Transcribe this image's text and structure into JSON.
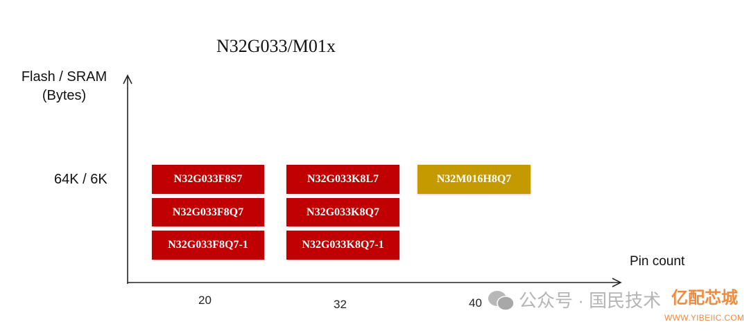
{
  "title": "N32G033/M01x",
  "y_axis": {
    "label_line1": "Flash / SRAM",
    "label_line2": "(Bytes)",
    "tick": "64K / 6K"
  },
  "x_axis": {
    "label": "Pin count",
    "ticks": [
      "20",
      "32",
      "40"
    ]
  },
  "columns": [
    {
      "pins": "20",
      "parts": [
        "N32G033F8S7",
        "N32G033F8Q7",
        "N32G033F8Q7-1"
      ],
      "color": "#c00000"
    },
    {
      "pins": "32",
      "parts": [
        "N32G033K8L7",
        "N32G033K8Q7",
        "N32G033K8Q7-1"
      ],
      "color": "#c00000"
    },
    {
      "pins": "40",
      "parts": [
        "N32M016H8Q7"
      ],
      "color": "#c49a00"
    }
  ],
  "watermark": {
    "icon": "wechat-icon",
    "text": "公众号 · 国民技术",
    "brand": "亿配芯城",
    "brand_url": "WWW.YIBEIIC.COM"
  }
}
